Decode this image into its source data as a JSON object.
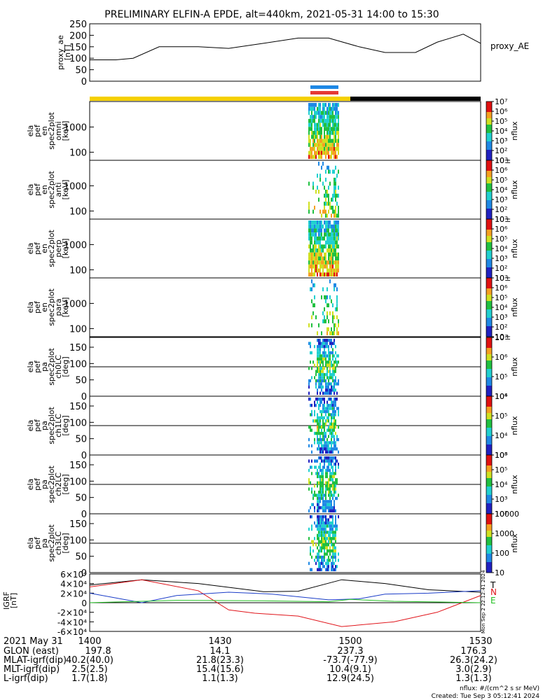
{
  "title": "PRELIMINARY ELFIN-A EPDE, alt=440km, 2021-05-31 14:00 to 15:30",
  "time_axis": {
    "date_label": "2021 May 31",
    "ticks": [
      "1400",
      "1430",
      "1500",
      "1530"
    ]
  },
  "footer_rows": [
    {
      "label": "GLON (east)",
      "values": [
        "197.8",
        "14.1",
        "237.3",
        "176.3"
      ]
    },
    {
      "label": "MLAT-igrf(dip)",
      "values": [
        "40.2(40.0)",
        "21.8(23.3)",
        "-73.7(-77.9)",
        "26.3(24.2)"
      ]
    },
    {
      "label": "MLT-igrf(dip)",
      "values": [
        "2.5(2.5)",
        "15.4(15.6)",
        "10.4(9.1)",
        "3.0(2.9)"
      ]
    },
    {
      "label": "L-igrf(dip)",
      "values": [
        "1.7(1.8)",
        "1.1(1.3)",
        "12.9(24.5)",
        "1.3(1.3)"
      ]
    }
  ],
  "units_note": "nflux: #/(cm^2 s sr MeV)",
  "created_note": "Created: Tue Sep  3 05:12:41 2024",
  "side_stamp": "Mon Sep  2 22:12:41 2024",
  "colors": {
    "sunlit_bar": "#f5d000",
    "eclipse_bar": "#000000",
    "science_bar": "#1e88e5",
    "fast_bar": "#e53935",
    "igrf_T": "#000000",
    "igrf_N": "#e0141a",
    "igrf_E": "#22c022",
    "igrf_other": "#1a3cc8"
  },
  "chart_data": [
    {
      "type": "line",
      "ylabel": "proxy_ae [nT]",
      "ylim": [
        0,
        250
      ],
      "yticks": [
        "0",
        "50",
        "100",
        "150",
        "200",
        "250"
      ],
      "legend": "proxy_AE",
      "x": [
        0,
        6,
        10,
        16,
        25,
        32,
        40,
        48,
        55,
        62,
        68,
        75,
        80,
        86,
        90
      ],
      "values": [
        93,
        93,
        100,
        150,
        150,
        143,
        165,
        188,
        188,
        150,
        125,
        125,
        170,
        205,
        165
      ]
    },
    {
      "type": "heatmap",
      "ylabel": "ela pef en spec2plot omni [keV]",
      "yticks": [
        "100",
        "1000"
      ],
      "zlabel": "nflux",
      "ztick_labels": [
        "10±",
        "10²",
        "10³",
        "10⁴",
        "10⁵",
        "10⁶",
        "10⁷"
      ]
    },
    {
      "type": "heatmap",
      "ylabel": "ela pef en spec2plot anti [keV]",
      "yticks": [
        "100",
        "1000"
      ],
      "zlabel": "nflux",
      "ztick_labels": [
        "10±",
        "10²",
        "10³",
        "10⁴",
        "10⁵",
        "10⁶",
        "10⁷"
      ]
    },
    {
      "type": "heatmap",
      "ylabel": "ela pef en spec2plot perp [keV]",
      "yticks": [
        "100",
        "1000"
      ],
      "zlabel": "nflux",
      "ztick_labels": [
        "10±",
        "10²",
        "10³",
        "10⁴",
        "10⁵",
        "10⁶",
        "10⁷"
      ]
    },
    {
      "type": "heatmap",
      "ylabel": "ela pef en spec2plot para [keV]",
      "yticks": [
        "100",
        "1000"
      ],
      "zlabel": "nflux",
      "ztick_labels": [
        "10±",
        "10²",
        "10³",
        "10⁴",
        "10⁵",
        "10⁶",
        "10⁷"
      ]
    },
    {
      "type": "heatmap",
      "ylabel": "ela pef pa spec2plot ch0LC [deg]",
      "yticks": [
        "0",
        "50",
        "100",
        "150"
      ],
      "zlabel": "nflux",
      "ztick_labels": [
        "10⁴",
        "10⁵",
        "10⁶",
        "10⁷"
      ]
    },
    {
      "type": "heatmap",
      "ylabel": "ela pef pa spec2plot ch1LC [deg]",
      "yticks": [
        "0",
        "50",
        "100",
        "150"
      ],
      "zlabel": "nflux",
      "ztick_labels": [
        "10³",
        "10⁴",
        "10⁵",
        "10⁶"
      ]
    },
    {
      "type": "heatmap",
      "ylabel": "ela pef pa spec2plot ch2LC [deg]",
      "yticks": [
        "0",
        "50",
        "100",
        "150"
      ],
      "zlabel": "nflux",
      "ztick_labels": [
        "10²",
        "10³",
        "10⁴",
        "10⁵",
        "10⁶"
      ]
    },
    {
      "type": "heatmap",
      "ylabel": "ela pef pa spec2plot ch3LC [deg]",
      "yticks": [
        "0",
        "50",
        "100",
        "150"
      ],
      "zlabel": "nflux",
      "ztick_labels": [
        "10",
        "100",
        "1000",
        "10000"
      ]
    },
    {
      "type": "line",
      "ylabel": "IGRF [nT]",
      "ylim": [
        -60000,
        60000
      ],
      "yticks": [
        "-6×10⁴",
        "-4×10⁴",
        "-2×10⁴",
        "0",
        "2×10⁴",
        "4×10⁴",
        "6×10⁴"
      ],
      "legend": [
        "T",
        "N",
        "E"
      ],
      "series": [
        {
          "name": "T",
          "x": [
            0,
            12,
            25,
            40,
            48,
            58,
            68,
            78,
            90
          ],
          "values": [
            37000,
            48000,
            40000,
            23000,
            24000,
            48000,
            40000,
            27000,
            22000
          ]
        },
        {
          "name": "N",
          "x": [
            0,
            12,
            25,
            32,
            38,
            48,
            58,
            70,
            80,
            90
          ],
          "values": [
            33000,
            48000,
            25000,
            -15000,
            -22000,
            -28000,
            -50000,
            -40000,
            -20000,
            15000
          ]
        },
        {
          "x": [
            0,
            12,
            20,
            32,
            42,
            55,
            62,
            68,
            78,
            90
          ],
          "values": [
            20000,
            0,
            15000,
            22000,
            18000,
            6000,
            8000,
            18000,
            20000,
            25000
          ]
        },
        {
          "name": "E",
          "x": [
            0,
            20,
            40,
            55,
            60,
            70,
            90
          ],
          "values": [
            0,
            5000,
            4000,
            2000,
            7000,
            3000,
            0
          ]
        }
      ]
    }
  ]
}
